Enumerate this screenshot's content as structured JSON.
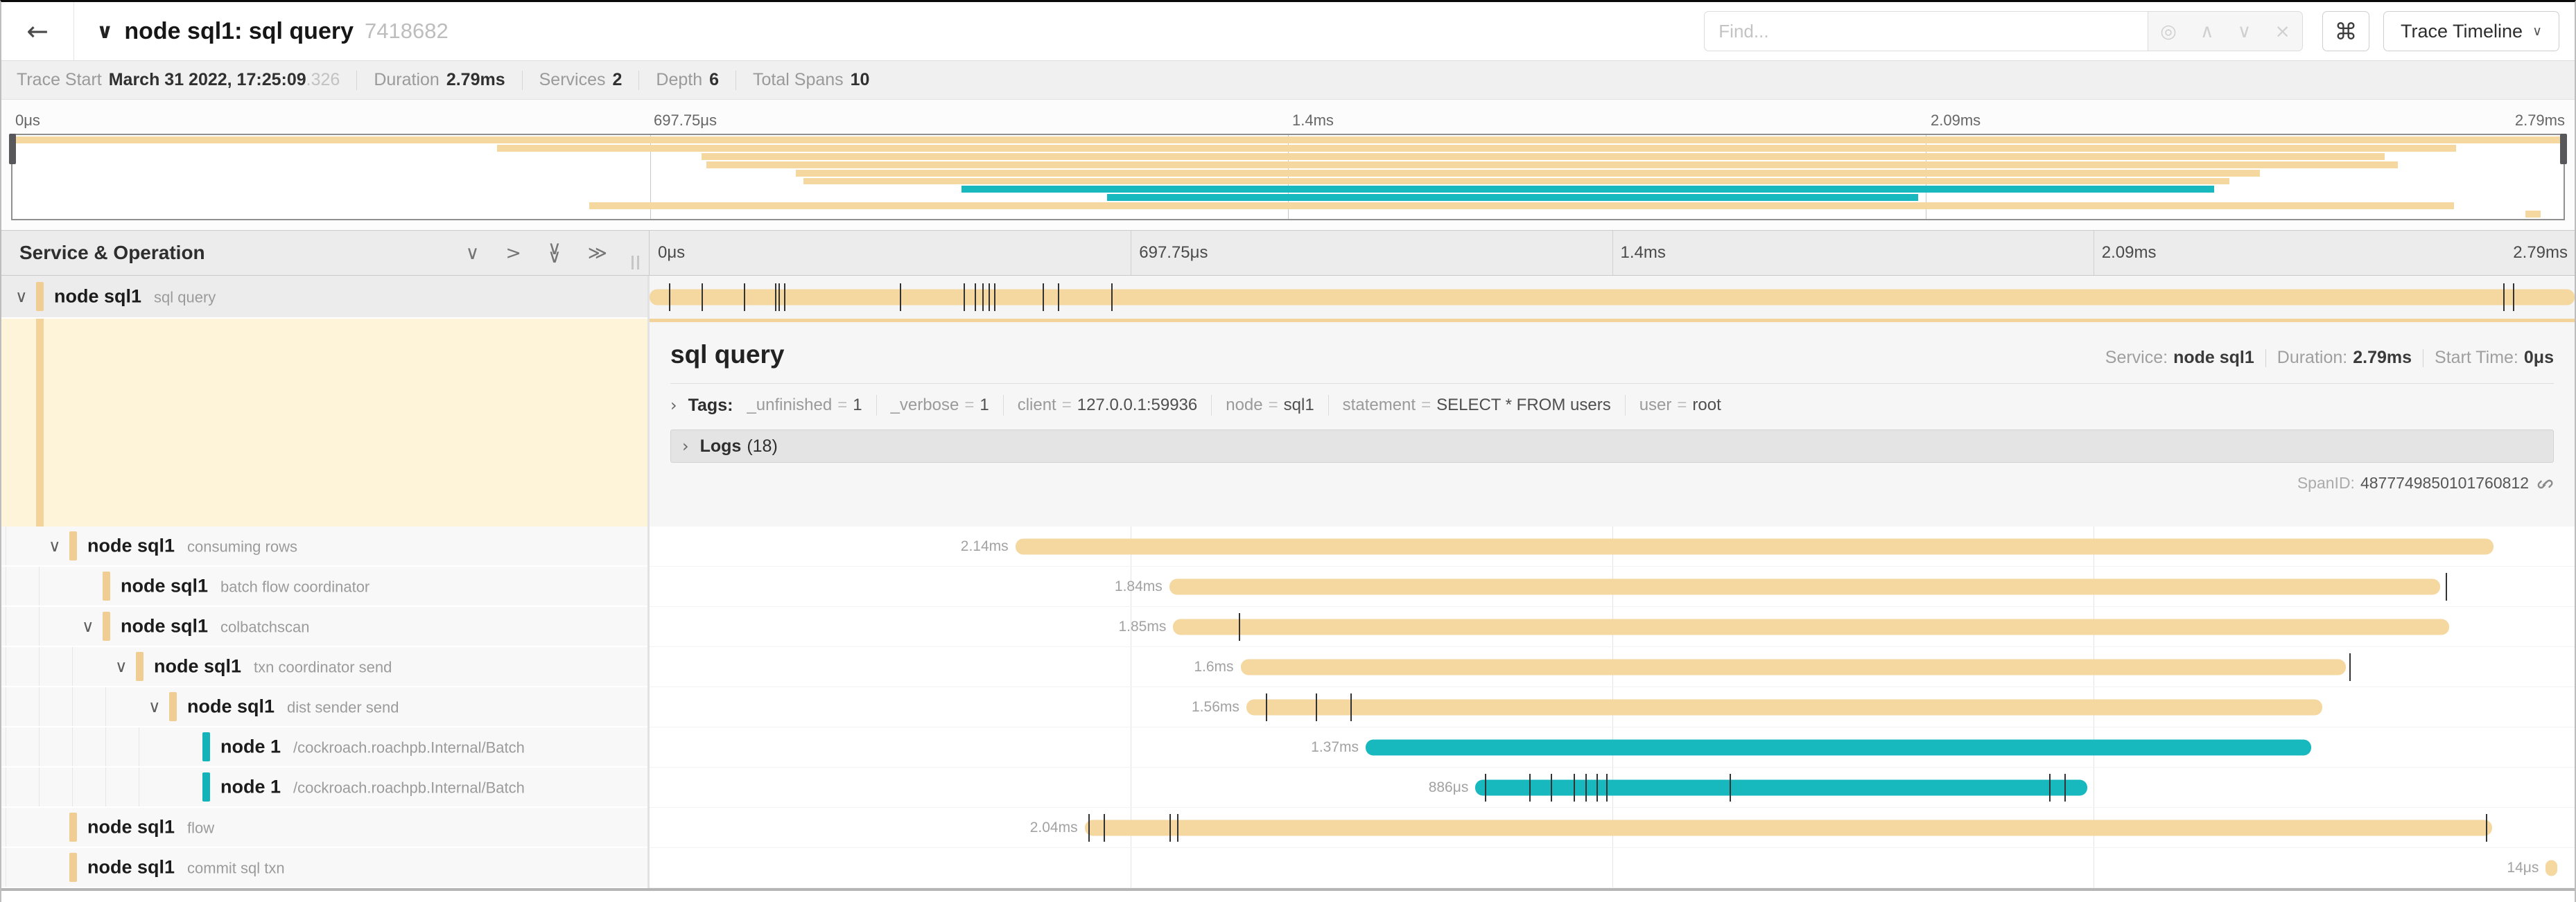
{
  "glyphs": {
    "back": "←",
    "title_chevron": "∨",
    "find_target": "◎",
    "find_prev": "∧",
    "find_next": "∨",
    "find_close": "×",
    "kbd": "⌘",
    "view_caret": "∨",
    "chevron_down": "∨",
    "chevron_right": ">",
    "double_chevron_right": "≫",
    "toggle_right": "›"
  },
  "header": {
    "title": "node sql1: sql query",
    "trace_id": "7418682",
    "find_placeholder": "Find...",
    "view_button_label": "Trace Timeline"
  },
  "stats": [
    {
      "label": "Trace Start",
      "value": "March 31 2022, 17:25:09",
      "suffix": ".326"
    },
    {
      "label": "Duration",
      "value": "2.79ms",
      "suffix": ""
    },
    {
      "label": "Services",
      "value": "2",
      "suffix": ""
    },
    {
      "label": "Depth",
      "value": "6",
      "suffix": ""
    },
    {
      "label": "Total Spans",
      "value": "10",
      "suffix": ""
    }
  ],
  "timeline": {
    "ticks": [
      "0μs",
      "697.75μs",
      "1.4ms",
      "2.09ms",
      "2.79ms"
    ]
  },
  "tree_header": "Service & Operation",
  "detail": {
    "title": "sql query",
    "service_label": "Service:",
    "service": "node sql1",
    "duration_label": "Duration:",
    "duration": "2.79ms",
    "start_label": "Start Time:",
    "start": "0μs",
    "tags_label": "Tags:",
    "tags": [
      {
        "key": "_unfinished",
        "value": "1"
      },
      {
        "key": "_verbose",
        "value": "1"
      },
      {
        "key": "client",
        "value": "127.0.0.1:59936"
      },
      {
        "key": "node",
        "value": "sql1"
      },
      {
        "key": "statement",
        "value": "SELECT * FROM users"
      },
      {
        "key": "user",
        "value": "root"
      }
    ],
    "logs_label": "Logs",
    "logs_count": "(18)",
    "spanid_label": "SpanID:",
    "spanid": "4877749850101760812"
  },
  "colors": {
    "yellow": "#f5d7a0",
    "teal": "#17b8be",
    "chip_yellow": "#f0cd92",
    "chip_teal": "#14b3ba"
  },
  "chart_data": {
    "type": "gantt",
    "total_duration": "2.79ms",
    "axis_ticks": [
      "0μs",
      "697.75μs",
      "1.4ms",
      "2.09ms",
      "2.79ms"
    ],
    "spans": [
      {
        "service": "node sql1",
        "operation": "sql query",
        "color": "yellow",
        "depth": 0,
        "has_children": true,
        "selected": true,
        "start_pct": 0,
        "end_pct": 100,
        "duration_label": "",
        "ticks": [
          1.0,
          2.7,
          4.9,
          6.5,
          6.7,
          7.0,
          13.0,
          16.3,
          16.9,
          17.3,
          17.6,
          17.9,
          20.4,
          21.2,
          24.0,
          96.3,
          96.8
        ]
      },
      {
        "service": "node sql1",
        "operation": "consuming rows",
        "color": "yellow",
        "depth": 1,
        "has_children": true,
        "selected": false,
        "start_pct": 19.0,
        "end_pct": 95.8,
        "duration_label": "2.14ms",
        "ticks": []
      },
      {
        "service": "node sql1",
        "operation": "batch flow coordinator",
        "color": "yellow",
        "depth": 2,
        "has_children": false,
        "selected": false,
        "start_pct": 27.0,
        "end_pct": 93.0,
        "duration_label": "1.84ms",
        "ticks": [
          93.3
        ]
      },
      {
        "service": "node sql1",
        "operation": "colbatchscan",
        "color": "yellow",
        "depth": 2,
        "has_children": true,
        "selected": false,
        "start_pct": 27.2,
        "end_pct": 93.5,
        "duration_label": "1.85ms",
        "ticks": [
          30.6
        ]
      },
      {
        "service": "node sql1",
        "operation": "txn coordinator send",
        "color": "yellow",
        "depth": 3,
        "has_children": true,
        "selected": false,
        "start_pct": 30.7,
        "end_pct": 88.1,
        "duration_label": "1.6ms",
        "ticks": [
          88.3
        ]
      },
      {
        "service": "node sql1",
        "operation": "dist sender send",
        "color": "yellow",
        "depth": 4,
        "has_children": true,
        "selected": false,
        "start_pct": 31.0,
        "end_pct": 86.9,
        "duration_label": "1.56ms",
        "ticks": [
          32.0,
          34.6,
          36.4
        ]
      },
      {
        "service": "node 1",
        "operation": "/cockroach.roachpb.Internal/Batch",
        "color": "teal",
        "depth": 5,
        "has_children": false,
        "selected": false,
        "start_pct": 37.2,
        "end_pct": 86.3,
        "duration_label": "1.37ms",
        "ticks": []
      },
      {
        "service": "node 1",
        "operation": "/cockroach.roachpb.Internal/Batch",
        "color": "teal",
        "depth": 5,
        "has_children": false,
        "selected": false,
        "start_pct": 42.9,
        "end_pct": 74.7,
        "duration_label": "886μs",
        "ticks": [
          43.4,
          45.7,
          46.8,
          48.0,
          48.6,
          49.2,
          49.7,
          56.1,
          72.7,
          73.5
        ]
      },
      {
        "service": "node sql1",
        "operation": "flow",
        "color": "yellow",
        "depth": 1,
        "has_children": false,
        "selected": false,
        "start_pct": 22.6,
        "end_pct": 95.7,
        "duration_label": "2.04ms",
        "ticks": [
          22.8,
          23.6,
          27.0,
          27.4,
          95.4
        ]
      },
      {
        "service": "node sql1",
        "operation": "commit sql txn",
        "color": "yellow",
        "depth": 1,
        "has_children": false,
        "selected": false,
        "start_pct": 98.5,
        "end_pct": 99.1,
        "duration_label": "14μs",
        "ticks": []
      }
    ]
  }
}
